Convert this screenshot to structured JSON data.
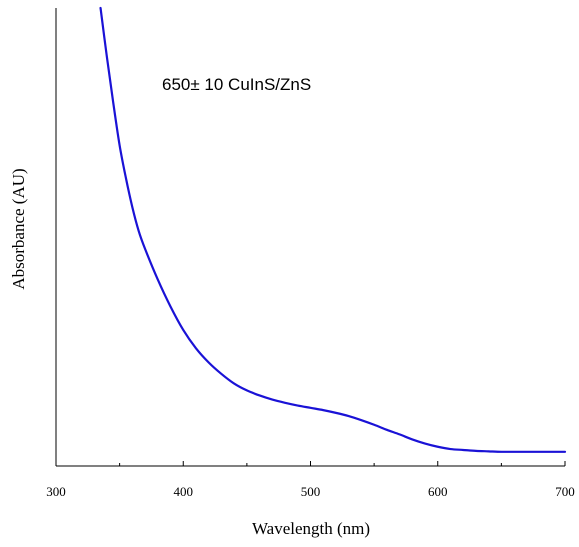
{
  "chart_data": {
    "type": "line",
    "title": "",
    "xlabel": "Wavelength (nm)",
    "ylabel": "Absorbance (AU)",
    "xlim": [
      300,
      700
    ],
    "ylim": [
      0,
      1
    ],
    "x_ticks": [
      300,
      400,
      500,
      600,
      700
    ],
    "x_minor_ticks": [
      350,
      450,
      550,
      650
    ],
    "y_ticks": [],
    "grid": false,
    "legend": "none",
    "annotation": "650± 10 CuInS/ZnS",
    "series": [
      {
        "color": "#1a12d6",
        "x": [
          335,
          340,
          345,
          350,
          355,
          360,
          365,
          370,
          380,
          390,
          400,
          410,
          420,
          430,
          440,
          450,
          460,
          470,
          480,
          490,
          500,
          510,
          520,
          530,
          540,
          550,
          560,
          570,
          580,
          590,
          600,
          610,
          620,
          630,
          640,
          650,
          660,
          670,
          680,
          690,
          700
        ],
        "y": [
          1.0,
          0.893,
          0.793,
          0.7,
          0.628,
          0.565,
          0.513,
          0.474,
          0.407,
          0.348,
          0.297,
          0.257,
          0.226,
          0.201,
          0.18,
          0.165,
          0.154,
          0.145,
          0.138,
          0.132,
          0.127,
          0.122,
          0.116,
          0.109,
          0.1,
          0.09,
          0.079,
          0.069,
          0.058,
          0.049,
          0.042,
          0.037,
          0.035,
          0.033,
          0.032,
          0.031,
          0.031,
          0.031,
          0.031,
          0.031,
          0.031
        ]
      }
    ]
  }
}
